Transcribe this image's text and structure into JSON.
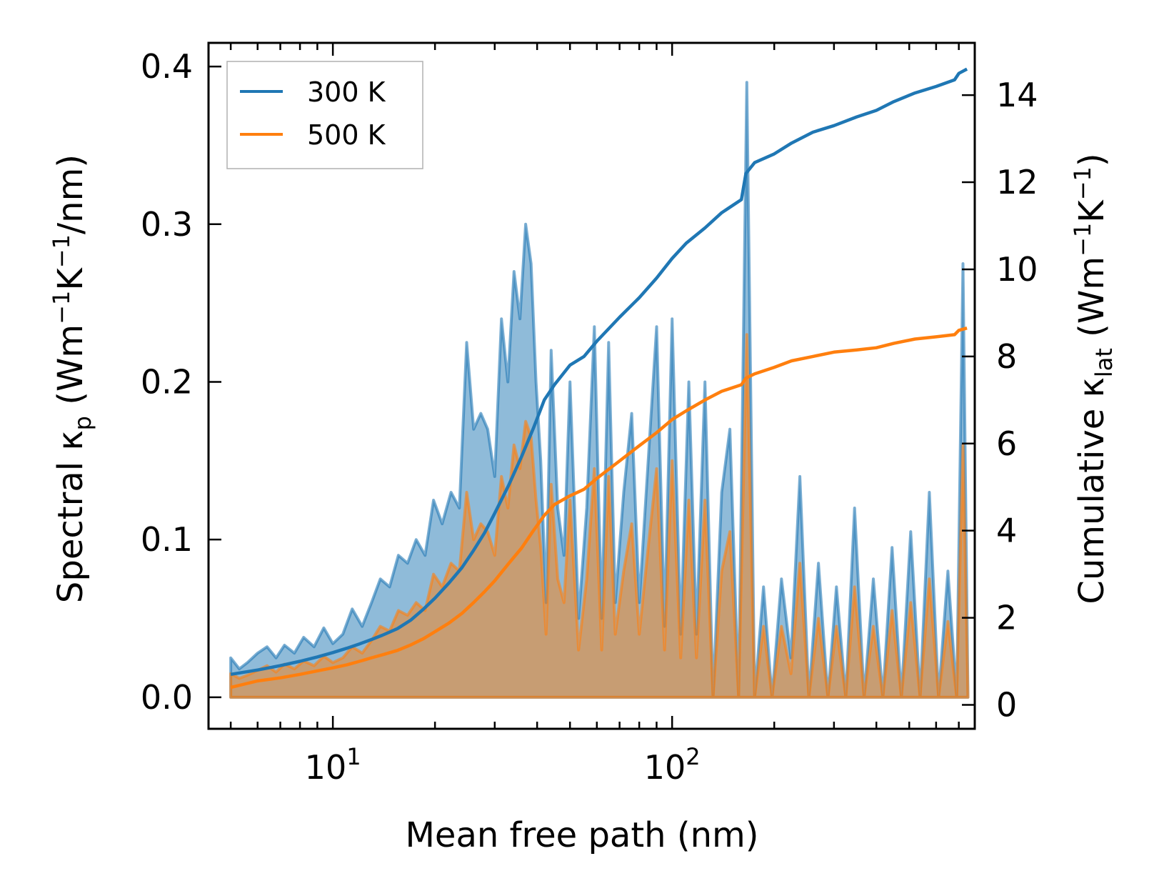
{
  "chart_data": {
    "type": "area",
    "x_scale": "log",
    "xlim": [
      4.3,
      780
    ],
    "ylim_left": [
      -0.02,
      0.415
    ],
    "ylim_right": [
      -0.55,
      15.2
    ],
    "xlabel": "Mean free path (nm)",
    "ylabel_left": {
      "base": "Spectral κ",
      "sub": "p",
      "unit_prefix": " (Wm",
      "exp1": "−1",
      "mid": "K",
      "exp2": "−1",
      "unit_suffix": "/nm)"
    },
    "ylabel_right": {
      "base": "Cumulative κ",
      "sub": "lat",
      "unit_prefix": " (Wm",
      "exp1": "−1",
      "mid": "K",
      "exp2": "−1",
      "unit_suffix": ")"
    },
    "x_ticks": [
      {
        "value": 10,
        "base": "10",
        "exp": "1"
      },
      {
        "value": 100,
        "base": "10",
        "exp": "2"
      }
    ],
    "y_ticks_left": [
      {
        "value": 0.0,
        "label": "0.0"
      },
      {
        "value": 0.1,
        "label": "0.1"
      },
      {
        "value": 0.2,
        "label": "0.2"
      },
      {
        "value": 0.3,
        "label": "0.3"
      },
      {
        "value": 0.4,
        "label": "0.4"
      }
    ],
    "y_ticks_right": [
      {
        "value": 0,
        "label": "0"
      },
      {
        "value": 2,
        "label": "2"
      },
      {
        "value": 4,
        "label": "4"
      },
      {
        "value": 6,
        "label": "6"
      },
      {
        "value": 8,
        "label": "8"
      },
      {
        "value": 10,
        "label": "10"
      },
      {
        "value": 12,
        "label": "12"
      },
      {
        "value": 14,
        "label": "14"
      }
    ],
    "legend": {
      "location": "upper-left",
      "entries": [
        "300 K",
        "500 K"
      ]
    },
    "series": [
      {
        "name": "300 K",
        "color": "#1f77b4",
        "spectral": [
          [
            5.0,
            0.025
          ],
          [
            5.3,
            0.018
          ],
          [
            5.6,
            0.022
          ],
          [
            6.0,
            0.028
          ],
          [
            6.4,
            0.032
          ],
          [
            6.8,
            0.025
          ],
          [
            7.2,
            0.033
          ],
          [
            7.7,
            0.028
          ],
          [
            8.2,
            0.038
          ],
          [
            8.8,
            0.032
          ],
          [
            9.4,
            0.044
          ],
          [
            10.0,
            0.034
          ],
          [
            10.7,
            0.04
          ],
          [
            11.4,
            0.056
          ],
          [
            12.2,
            0.045
          ],
          [
            13.0,
            0.06
          ],
          [
            13.8,
            0.075
          ],
          [
            14.7,
            0.07
          ],
          [
            15.6,
            0.09
          ],
          [
            16.6,
            0.085
          ],
          [
            17.6,
            0.1
          ],
          [
            18.7,
            0.09
          ],
          [
            19.8,
            0.125
          ],
          [
            21.0,
            0.11
          ],
          [
            22.3,
            0.13
          ],
          [
            23.6,
            0.12
          ],
          [
            24.8,
            0.225
          ],
          [
            26.0,
            0.17
          ],
          [
            27.3,
            0.18
          ],
          [
            28.6,
            0.17
          ],
          [
            30.0,
            0.14
          ],
          [
            31.4,
            0.24
          ],
          [
            32.8,
            0.2
          ],
          [
            34.2,
            0.27
          ],
          [
            35.6,
            0.24
          ],
          [
            37.0,
            0.3
          ],
          [
            38.4,
            0.275
          ],
          [
            39.7,
            0.2
          ],
          [
            41.0,
            0.15
          ],
          [
            42.5,
            0.06
          ],
          [
            44.0,
            0.22
          ],
          [
            46.0,
            0.12
          ],
          [
            48.0,
            0.09
          ],
          [
            50.0,
            0.2
          ],
          [
            53.0,
            0.05
          ],
          [
            56.0,
            0.12
          ],
          [
            59.0,
            0.235
          ],
          [
            62.0,
            0.05
          ],
          [
            65.0,
            0.225
          ],
          [
            68.0,
            0.06
          ],
          [
            72.0,
            0.13
          ],
          [
            76.0,
            0.18
          ],
          [
            80.0,
            0.06
          ],
          [
            85.0,
            0.15
          ],
          [
            90.0,
            0.235
          ],
          [
            95.0,
            0.045
          ],
          [
            100.0,
            0.24
          ],
          [
            106.0,
            0.04
          ],
          [
            112.0,
            0.2
          ],
          [
            118.0,
            0.04
          ],
          [
            125.0,
            0.2
          ],
          [
            132.0,
            0.0
          ],
          [
            140.0,
            0.13
          ],
          [
            148.0,
            0.17
          ],
          [
            157.0,
            0.0
          ],
          [
            166.0,
            0.39
          ],
          [
            175.0,
            0.0
          ],
          [
            186.0,
            0.07
          ],
          [
            197.0,
            0.0
          ],
          [
            210.0,
            0.075
          ],
          [
            224.0,
            0.025
          ],
          [
            238.0,
            0.14
          ],
          [
            253.0,
            0.0
          ],
          [
            270.0,
            0.085
          ],
          [
            288.0,
            0.0
          ],
          [
            305.0,
            0.07
          ],
          [
            325.0,
            0.0
          ],
          [
            345.0,
            0.12
          ],
          [
            368.0,
            0.0
          ],
          [
            392.0,
            0.075
          ],
          [
            418.0,
            0.0
          ],
          [
            445.0,
            0.095
          ],
          [
            474.0,
            0.0
          ],
          [
            505.0,
            0.105
          ],
          [
            538.0,
            0.0
          ],
          [
            573.0,
            0.13
          ],
          [
            610.0,
            0.0
          ],
          [
            650.0,
            0.08
          ],
          [
            690.0,
            0.0
          ],
          [
            720.0,
            0.275
          ],
          [
            745.0,
            0.0
          ]
        ],
        "cumulative": [
          [
            5.0,
            0.7
          ],
          [
            6.0,
            0.8
          ],
          [
            7.0,
            0.9
          ],
          [
            8.0,
            1.0
          ],
          [
            9.0,
            1.1
          ],
          [
            10.0,
            1.2
          ],
          [
            11.0,
            1.3
          ],
          [
            12.0,
            1.4
          ],
          [
            13.0,
            1.5
          ],
          [
            14.0,
            1.6
          ],
          [
            15.5,
            1.75
          ],
          [
            17.0,
            1.95
          ],
          [
            18.5,
            2.2
          ],
          [
            20.0,
            2.45
          ],
          [
            22.0,
            2.8
          ],
          [
            24.0,
            3.15
          ],
          [
            26.0,
            3.55
          ],
          [
            28.0,
            3.95
          ],
          [
            30.0,
            4.4
          ],
          [
            33.0,
            5.05
          ],
          [
            36.0,
            5.7
          ],
          [
            39.0,
            6.35
          ],
          [
            42.0,
            7.0
          ],
          [
            45.0,
            7.35
          ],
          [
            50.0,
            7.8
          ],
          [
            55.0,
            8.0
          ],
          [
            60.0,
            8.35
          ],
          [
            70.0,
            8.9
          ],
          [
            80.0,
            9.35
          ],
          [
            90.0,
            9.8
          ],
          [
            100.0,
            10.25
          ],
          [
            110.0,
            10.6
          ],
          [
            125.0,
            10.95
          ],
          [
            140.0,
            11.3
          ],
          [
            160.0,
            11.6
          ],
          [
            165.0,
            12.2
          ],
          [
            175.0,
            12.45
          ],
          [
            200.0,
            12.65
          ],
          [
            225.0,
            12.9
          ],
          [
            260.0,
            13.15
          ],
          [
            300.0,
            13.3
          ],
          [
            350.0,
            13.5
          ],
          [
            400.0,
            13.65
          ],
          [
            450.0,
            13.85
          ],
          [
            520.0,
            14.05
          ],
          [
            600.0,
            14.2
          ],
          [
            680.0,
            14.35
          ],
          [
            700.0,
            14.5
          ],
          [
            740.0,
            14.6
          ]
        ]
      },
      {
        "name": "500 K",
        "color": "#ff7f0e",
        "spectral": [
          [
            5.0,
            0.015
          ],
          [
            5.3,
            0.012
          ],
          [
            5.6,
            0.014
          ],
          [
            6.0,
            0.017
          ],
          [
            6.4,
            0.02
          ],
          [
            6.8,
            0.016
          ],
          [
            7.2,
            0.021
          ],
          [
            7.7,
            0.018
          ],
          [
            8.2,
            0.023
          ],
          [
            8.8,
            0.02
          ],
          [
            9.4,
            0.026
          ],
          [
            10.0,
            0.022
          ],
          [
            10.7,
            0.025
          ],
          [
            11.4,
            0.032
          ],
          [
            12.2,
            0.028
          ],
          [
            13.0,
            0.036
          ],
          [
            13.8,
            0.045
          ],
          [
            14.7,
            0.042
          ],
          [
            15.6,
            0.055
          ],
          [
            16.6,
            0.052
          ],
          [
            17.6,
            0.06
          ],
          [
            18.7,
            0.055
          ],
          [
            19.8,
            0.078
          ],
          [
            21.0,
            0.07
          ],
          [
            22.3,
            0.085
          ],
          [
            23.6,
            0.08
          ],
          [
            24.8,
            0.13
          ],
          [
            26.0,
            0.1
          ],
          [
            27.3,
            0.11
          ],
          [
            28.6,
            0.105
          ],
          [
            30.0,
            0.09
          ],
          [
            31.4,
            0.14
          ],
          [
            32.8,
            0.12
          ],
          [
            34.2,
            0.16
          ],
          [
            35.6,
            0.145
          ],
          [
            37.0,
            0.175
          ],
          [
            38.4,
            0.165
          ],
          [
            39.7,
            0.125
          ],
          [
            41.0,
            0.095
          ],
          [
            42.5,
            0.04
          ],
          [
            44.0,
            0.135
          ],
          [
            46.0,
            0.075
          ],
          [
            48.0,
            0.06
          ],
          [
            50.0,
            0.125
          ],
          [
            53.0,
            0.03
          ],
          [
            56.0,
            0.075
          ],
          [
            59.0,
            0.145
          ],
          [
            62.0,
            0.03
          ],
          [
            65.0,
            0.14
          ],
          [
            68.0,
            0.04
          ],
          [
            72.0,
            0.08
          ],
          [
            76.0,
            0.11
          ],
          [
            80.0,
            0.04
          ],
          [
            85.0,
            0.095
          ],
          [
            90.0,
            0.145
          ],
          [
            95.0,
            0.03
          ],
          [
            100.0,
            0.15
          ],
          [
            106.0,
            0.025
          ],
          [
            112.0,
            0.125
          ],
          [
            118.0,
            0.025
          ],
          [
            125.0,
            0.125
          ],
          [
            132.0,
            0.0
          ],
          [
            140.0,
            0.08
          ],
          [
            148.0,
            0.105
          ],
          [
            157.0,
            0.0
          ],
          [
            166.0,
            0.23
          ],
          [
            175.0,
            0.0
          ],
          [
            186.0,
            0.045
          ],
          [
            197.0,
            0.0
          ],
          [
            210.0,
            0.045
          ],
          [
            224.0,
            0.015
          ],
          [
            238.0,
            0.085
          ],
          [
            253.0,
            0.0
          ],
          [
            270.0,
            0.05
          ],
          [
            288.0,
            0.0
          ],
          [
            305.0,
            0.045
          ],
          [
            325.0,
            0.0
          ],
          [
            345.0,
            0.07
          ],
          [
            368.0,
            0.0
          ],
          [
            392.0,
            0.045
          ],
          [
            418.0,
            0.0
          ],
          [
            445.0,
            0.055
          ],
          [
            474.0,
            0.0
          ],
          [
            505.0,
            0.06
          ],
          [
            538.0,
            0.0
          ],
          [
            573.0,
            0.075
          ],
          [
            610.0,
            0.0
          ],
          [
            650.0,
            0.048
          ],
          [
            690.0,
            0.0
          ],
          [
            720.0,
            0.16
          ],
          [
            745.0,
            0.0
          ]
        ],
        "cumulative": [
          [
            5.0,
            0.4
          ],
          [
            6.0,
            0.55
          ],
          [
            7.0,
            0.62
          ],
          [
            8.0,
            0.7
          ],
          [
            9.0,
            0.78
          ],
          [
            10.0,
            0.85
          ],
          [
            11.0,
            0.92
          ],
          [
            12.0,
            1.0
          ],
          [
            13.0,
            1.08
          ],
          [
            14.0,
            1.15
          ],
          [
            15.5,
            1.25
          ],
          [
            17.0,
            1.38
          ],
          [
            18.5,
            1.52
          ],
          [
            20.0,
            1.68
          ],
          [
            22.0,
            1.88
          ],
          [
            24.0,
            2.1
          ],
          [
            26.0,
            2.35
          ],
          [
            28.0,
            2.6
          ],
          [
            30.0,
            2.85
          ],
          [
            33.0,
            3.25
          ],
          [
            36.0,
            3.6
          ],
          [
            39.0,
            4.0
          ],
          [
            42.0,
            4.35
          ],
          [
            45.0,
            4.6
          ],
          [
            50.0,
            4.8
          ],
          [
            55.0,
            4.95
          ],
          [
            60.0,
            5.2
          ],
          [
            70.0,
            5.6
          ],
          [
            80.0,
            5.95
          ],
          [
            90.0,
            6.25
          ],
          [
            100.0,
            6.55
          ],
          [
            110.0,
            6.75
          ],
          [
            125.0,
            7.0
          ],
          [
            140.0,
            7.2
          ],
          [
            160.0,
            7.35
          ],
          [
            165.0,
            7.5
          ],
          [
            175.0,
            7.6
          ],
          [
            200.0,
            7.75
          ],
          [
            225.0,
            7.9
          ],
          [
            260.0,
            8.0
          ],
          [
            300.0,
            8.1
          ],
          [
            350.0,
            8.15
          ],
          [
            400.0,
            8.2
          ],
          [
            450.0,
            8.3
          ],
          [
            520.0,
            8.4
          ],
          [
            600.0,
            8.45
          ],
          [
            680.0,
            8.5
          ],
          [
            700.0,
            8.6
          ],
          [
            740.0,
            8.65
          ]
        ]
      }
    ]
  }
}
